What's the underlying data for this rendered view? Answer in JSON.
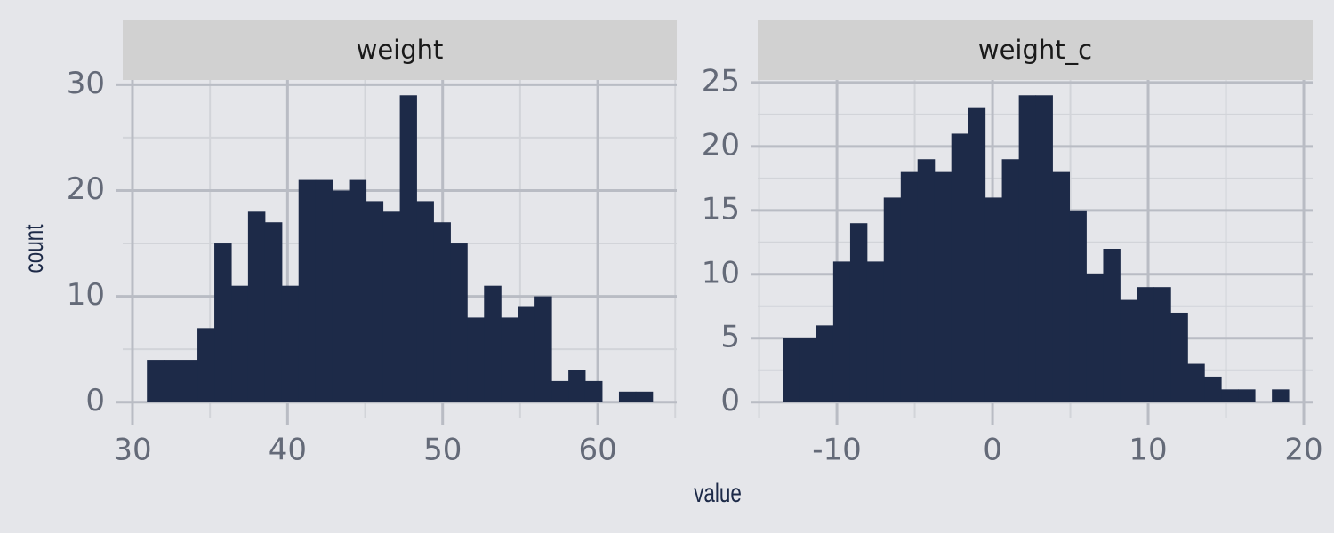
{
  "chart_data": [
    {
      "type": "histogram",
      "title": "weight",
      "color": "#1d2a48",
      "bins": [
        30.93,
        32.02,
        33.1,
        34.19,
        35.28,
        36.37,
        37.45,
        38.54,
        39.63,
        40.71,
        41.8,
        42.89,
        43.97,
        45.06,
        46.15,
        47.24,
        48.32,
        49.41,
        50.5,
        51.58,
        52.67,
        53.76,
        54.84,
        55.93,
        57.02,
        58.11,
        59.19,
        60.28,
        61.37,
        62.45,
        63.54
      ],
      "values": [
        4,
        4,
        4,
        7,
        15,
        11,
        18,
        17,
        11,
        21,
        21,
        20,
        21,
        19,
        18,
        29,
        19,
        17,
        15,
        8,
        11,
        8,
        9,
        10,
        2,
        3,
        2,
        0,
        1,
        1
      ],
      "xlim": [
        29.37,
        65.1
      ],
      "xticks": [
        30,
        40,
        50,
        60
      ],
      "minor_xticks": [
        35,
        45,
        55,
        65
      ],
      "ylim": [
        -1.45,
        30.45
      ],
      "yticks": [
        0,
        10,
        20,
        30
      ],
      "minor_yticks": [
        5,
        15,
        25
      ],
      "grid": true
    },
    {
      "type": "histogram",
      "title": "weight_c",
      "color": "#1d2a48",
      "bins": [
        -13.49,
        -12.41,
        -11.32,
        -10.24,
        -9.15,
        -8.07,
        -6.99,
        -5.9,
        -4.82,
        -3.73,
        -2.65,
        -1.57,
        -0.48,
        0.6,
        1.69,
        2.77,
        3.85,
        4.94,
        6.02,
        7.11,
        8.19,
        9.27,
        10.36,
        11.44,
        12.53,
        13.61,
        14.69,
        15.78,
        16.86,
        17.95,
        19.03
      ],
      "values": [
        5,
        5,
        6,
        11,
        14,
        11,
        16,
        18,
        19,
        18,
        21,
        23,
        16,
        19,
        24,
        24,
        18,
        15,
        10,
        12,
        8,
        9,
        9,
        7,
        3,
        2,
        1,
        1,
        0,
        1
      ],
      "xlim": [
        -15.09,
        20.57
      ],
      "xticks": [
        -10,
        0,
        10,
        20
      ],
      "minor_xticks": [
        -15,
        -5,
        5,
        15
      ],
      "ylim": [
        -1.2,
        25.2
      ],
      "yticks": [
        0,
        5,
        10,
        15,
        20,
        25
      ],
      "minor_yticks": [
        2.5,
        7.5,
        12.5,
        17.5,
        22.5
      ],
      "grid": true
    }
  ],
  "x_label": "value",
  "y_label": "count"
}
